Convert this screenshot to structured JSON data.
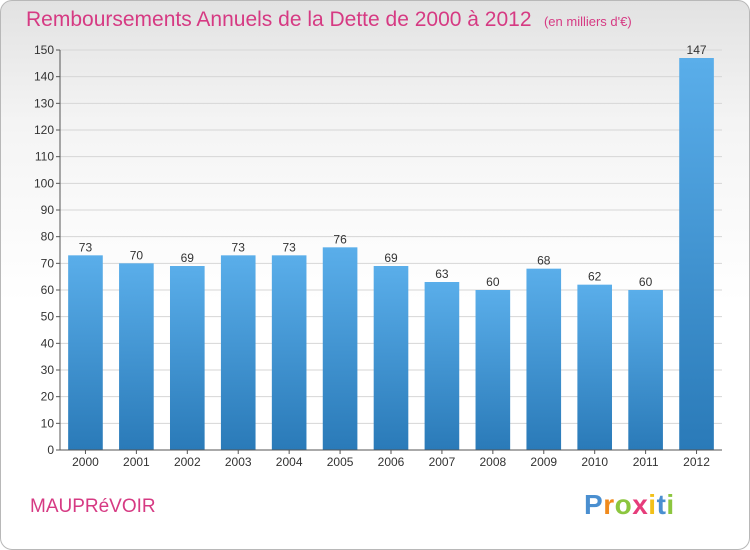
{
  "title": "Remboursements Annuels de la Dette de 2000 à 2012",
  "unit": "(en milliers d'€)",
  "town": "MAUPRéVOIR",
  "logo": {
    "letters": [
      "P",
      "r",
      "o",
      "x",
      "i",
      "t",
      "i"
    ],
    "colors": [
      "#4a8fd0",
      "#f08a1c",
      "#8cc63f",
      "#e63c7a",
      "#f2c018",
      "#4a8fd0",
      "#8cc63f"
    ]
  },
  "colors": {
    "bar_top": "#5aaeea",
    "bar_bottom": "#2a7ab8",
    "grid": "#d6d6d6",
    "accent": "#d63a83"
  },
  "chart_data": {
    "type": "bar",
    "categories": [
      "2000",
      "2001",
      "2002",
      "2003",
      "2004",
      "2005",
      "2006",
      "2007",
      "2008",
      "2009",
      "2010",
      "2011",
      "2012"
    ],
    "values": [
      73,
      70,
      69,
      73,
      73,
      76,
      69,
      63,
      60,
      68,
      62,
      60,
      147
    ],
    "title": "Remboursements Annuels de la Dette de 2000 à 2012",
    "ylim": [
      0,
      150
    ],
    "yticks": [
      0,
      10,
      20,
      30,
      40,
      50,
      60,
      70,
      80,
      90,
      100,
      110,
      120,
      130,
      140,
      150
    ],
    "grid": true,
    "legend": "none"
  }
}
